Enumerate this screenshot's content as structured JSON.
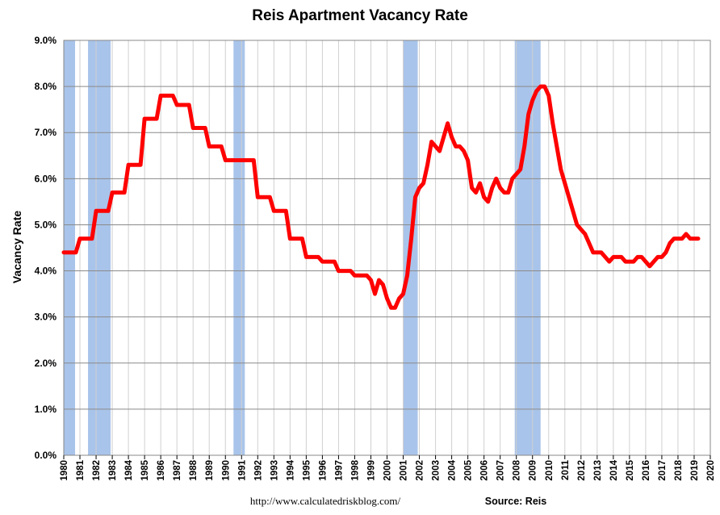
{
  "chart_data": {
    "type": "line",
    "title": "Reis Apartment Vacancy Rate",
    "xlabel": "",
    "ylabel": "Vacancy Rate",
    "xlim": [
      1980,
      2020
    ],
    "ylim": [
      0,
      9
    ],
    "y_ticks": [
      "0.0%",
      "1.0%",
      "2.0%",
      "3.0%",
      "4.0%",
      "5.0%",
      "6.0%",
      "7.0%",
      "8.0%",
      "9.0%"
    ],
    "x_ticks": [
      "1980",
      "1981",
      "1982",
      "1983",
      "1984",
      "1985",
      "1986",
      "1987",
      "1988",
      "1989",
      "1990",
      "1991",
      "1992",
      "1993",
      "1994",
      "1995",
      "1996",
      "1997",
      "1998",
      "1999",
      "2000",
      "2001",
      "2002",
      "2003",
      "2004",
      "2005",
      "2006",
      "2007",
      "2008",
      "2009",
      "2010",
      "2011",
      "2012",
      "2013",
      "2014",
      "2015",
      "2016",
      "2017",
      "2018",
      "2019",
      "2020"
    ],
    "grid": true,
    "line_color": "#ff0000",
    "recession_color": "#a9c4ea",
    "recessions": [
      [
        1980.0,
        1980.7
      ],
      [
        1981.5,
        1982.9
      ],
      [
        1990.5,
        1991.2
      ],
      [
        2001.0,
        2001.9
      ],
      [
        2007.9,
        2009.5
      ]
    ],
    "series": [
      {
        "values": [
          [
            1980.0,
            4.4
          ],
          [
            1980.75,
            4.4
          ],
          [
            1981.0,
            4.7
          ],
          [
            1981.75,
            4.7
          ],
          [
            1982.0,
            5.3
          ],
          [
            1982.75,
            5.3
          ],
          [
            1983.0,
            5.7
          ],
          [
            1983.75,
            5.7
          ],
          [
            1984.0,
            6.3
          ],
          [
            1984.75,
            6.3
          ],
          [
            1985.0,
            7.3
          ],
          [
            1985.75,
            7.3
          ],
          [
            1986.0,
            7.8
          ],
          [
            1986.75,
            7.8
          ],
          [
            1987.0,
            7.6
          ],
          [
            1987.75,
            7.6
          ],
          [
            1988.0,
            7.1
          ],
          [
            1988.75,
            7.1
          ],
          [
            1989.0,
            6.7
          ],
          [
            1989.75,
            6.7
          ],
          [
            1990.0,
            6.4
          ],
          [
            1990.75,
            6.4
          ],
          [
            1991.0,
            6.4
          ],
          [
            1991.75,
            6.4
          ],
          [
            1992.0,
            5.6
          ],
          [
            1992.75,
            5.6
          ],
          [
            1993.0,
            5.3
          ],
          [
            1993.75,
            5.3
          ],
          [
            1994.0,
            4.7
          ],
          [
            1994.75,
            4.7
          ],
          [
            1995.0,
            4.3
          ],
          [
            1995.75,
            4.3
          ],
          [
            1996.0,
            4.2
          ],
          [
            1996.75,
            4.2
          ],
          [
            1997.0,
            4.0
          ],
          [
            1997.75,
            4.0
          ],
          [
            1998.0,
            3.9
          ],
          [
            1998.75,
            3.9
          ],
          [
            1999.0,
            3.8
          ],
          [
            1999.25,
            3.5
          ],
          [
            1999.5,
            3.8
          ],
          [
            1999.75,
            3.7
          ],
          [
            2000.0,
            3.4
          ],
          [
            2000.25,
            3.2
          ],
          [
            2000.5,
            3.2
          ],
          [
            2000.75,
            3.4
          ],
          [
            2001.0,
            3.5
          ],
          [
            2001.25,
            3.9
          ],
          [
            2001.5,
            4.7
          ],
          [
            2001.75,
            5.6
          ],
          [
            2002.0,
            5.8
          ],
          [
            2002.25,
            5.9
          ],
          [
            2002.5,
            6.3
          ],
          [
            2002.75,
            6.8
          ],
          [
            2003.0,
            6.7
          ],
          [
            2003.25,
            6.6
          ],
          [
            2003.5,
            6.9
          ],
          [
            2003.75,
            7.2
          ],
          [
            2004.0,
            6.9
          ],
          [
            2004.25,
            6.7
          ],
          [
            2004.5,
            6.7
          ],
          [
            2004.75,
            6.6
          ],
          [
            2005.0,
            6.4
          ],
          [
            2005.25,
            5.8
          ],
          [
            2005.5,
            5.7
          ],
          [
            2005.75,
            5.9
          ],
          [
            2006.0,
            5.6
          ],
          [
            2006.25,
            5.5
          ],
          [
            2006.5,
            5.8
          ],
          [
            2006.75,
            6.0
          ],
          [
            2007.0,
            5.8
          ],
          [
            2007.25,
            5.7
          ],
          [
            2007.5,
            5.7
          ],
          [
            2007.75,
            6.0
          ],
          [
            2008.0,
            6.1
          ],
          [
            2008.25,
            6.2
          ],
          [
            2008.5,
            6.7
          ],
          [
            2008.75,
            7.4
          ],
          [
            2009.0,
            7.7
          ],
          [
            2009.25,
            7.9
          ],
          [
            2009.5,
            8.0
          ],
          [
            2009.75,
            8.0
          ],
          [
            2010.0,
            7.8
          ],
          [
            2010.25,
            7.2
          ],
          [
            2010.5,
            6.7
          ],
          [
            2010.75,
            6.2
          ],
          [
            2011.0,
            5.9
          ],
          [
            2011.25,
            5.6
          ],
          [
            2011.5,
            5.3
          ],
          [
            2011.75,
            5.0
          ],
          [
            2012.0,
            4.9
          ],
          [
            2012.25,
            4.8
          ],
          [
            2012.5,
            4.6
          ],
          [
            2012.75,
            4.4
          ],
          [
            2013.0,
            4.4
          ],
          [
            2013.25,
            4.4
          ],
          [
            2013.5,
            4.3
          ],
          [
            2013.75,
            4.2
          ],
          [
            2014.0,
            4.3
          ],
          [
            2014.25,
            4.3
          ],
          [
            2014.5,
            4.3
          ],
          [
            2014.75,
            4.2
          ],
          [
            2015.0,
            4.2
          ],
          [
            2015.25,
            4.2
          ],
          [
            2015.5,
            4.3
          ],
          [
            2015.75,
            4.3
          ],
          [
            2016.0,
            4.2
          ],
          [
            2016.25,
            4.1
          ],
          [
            2016.5,
            4.2
          ],
          [
            2016.75,
            4.3
          ],
          [
            2017.0,
            4.3
          ],
          [
            2017.25,
            4.4
          ],
          [
            2017.5,
            4.6
          ],
          [
            2017.75,
            4.7
          ],
          [
            2018.0,
            4.7
          ],
          [
            2018.25,
            4.7
          ],
          [
            2018.5,
            4.8
          ],
          [
            2018.75,
            4.7
          ],
          [
            2019.0,
            4.7
          ],
          [
            2019.25,
            4.7
          ]
        ]
      }
    ]
  },
  "footer": {
    "url": "http://www.calculatedriskblog.com/",
    "source": "Source: Reis"
  }
}
